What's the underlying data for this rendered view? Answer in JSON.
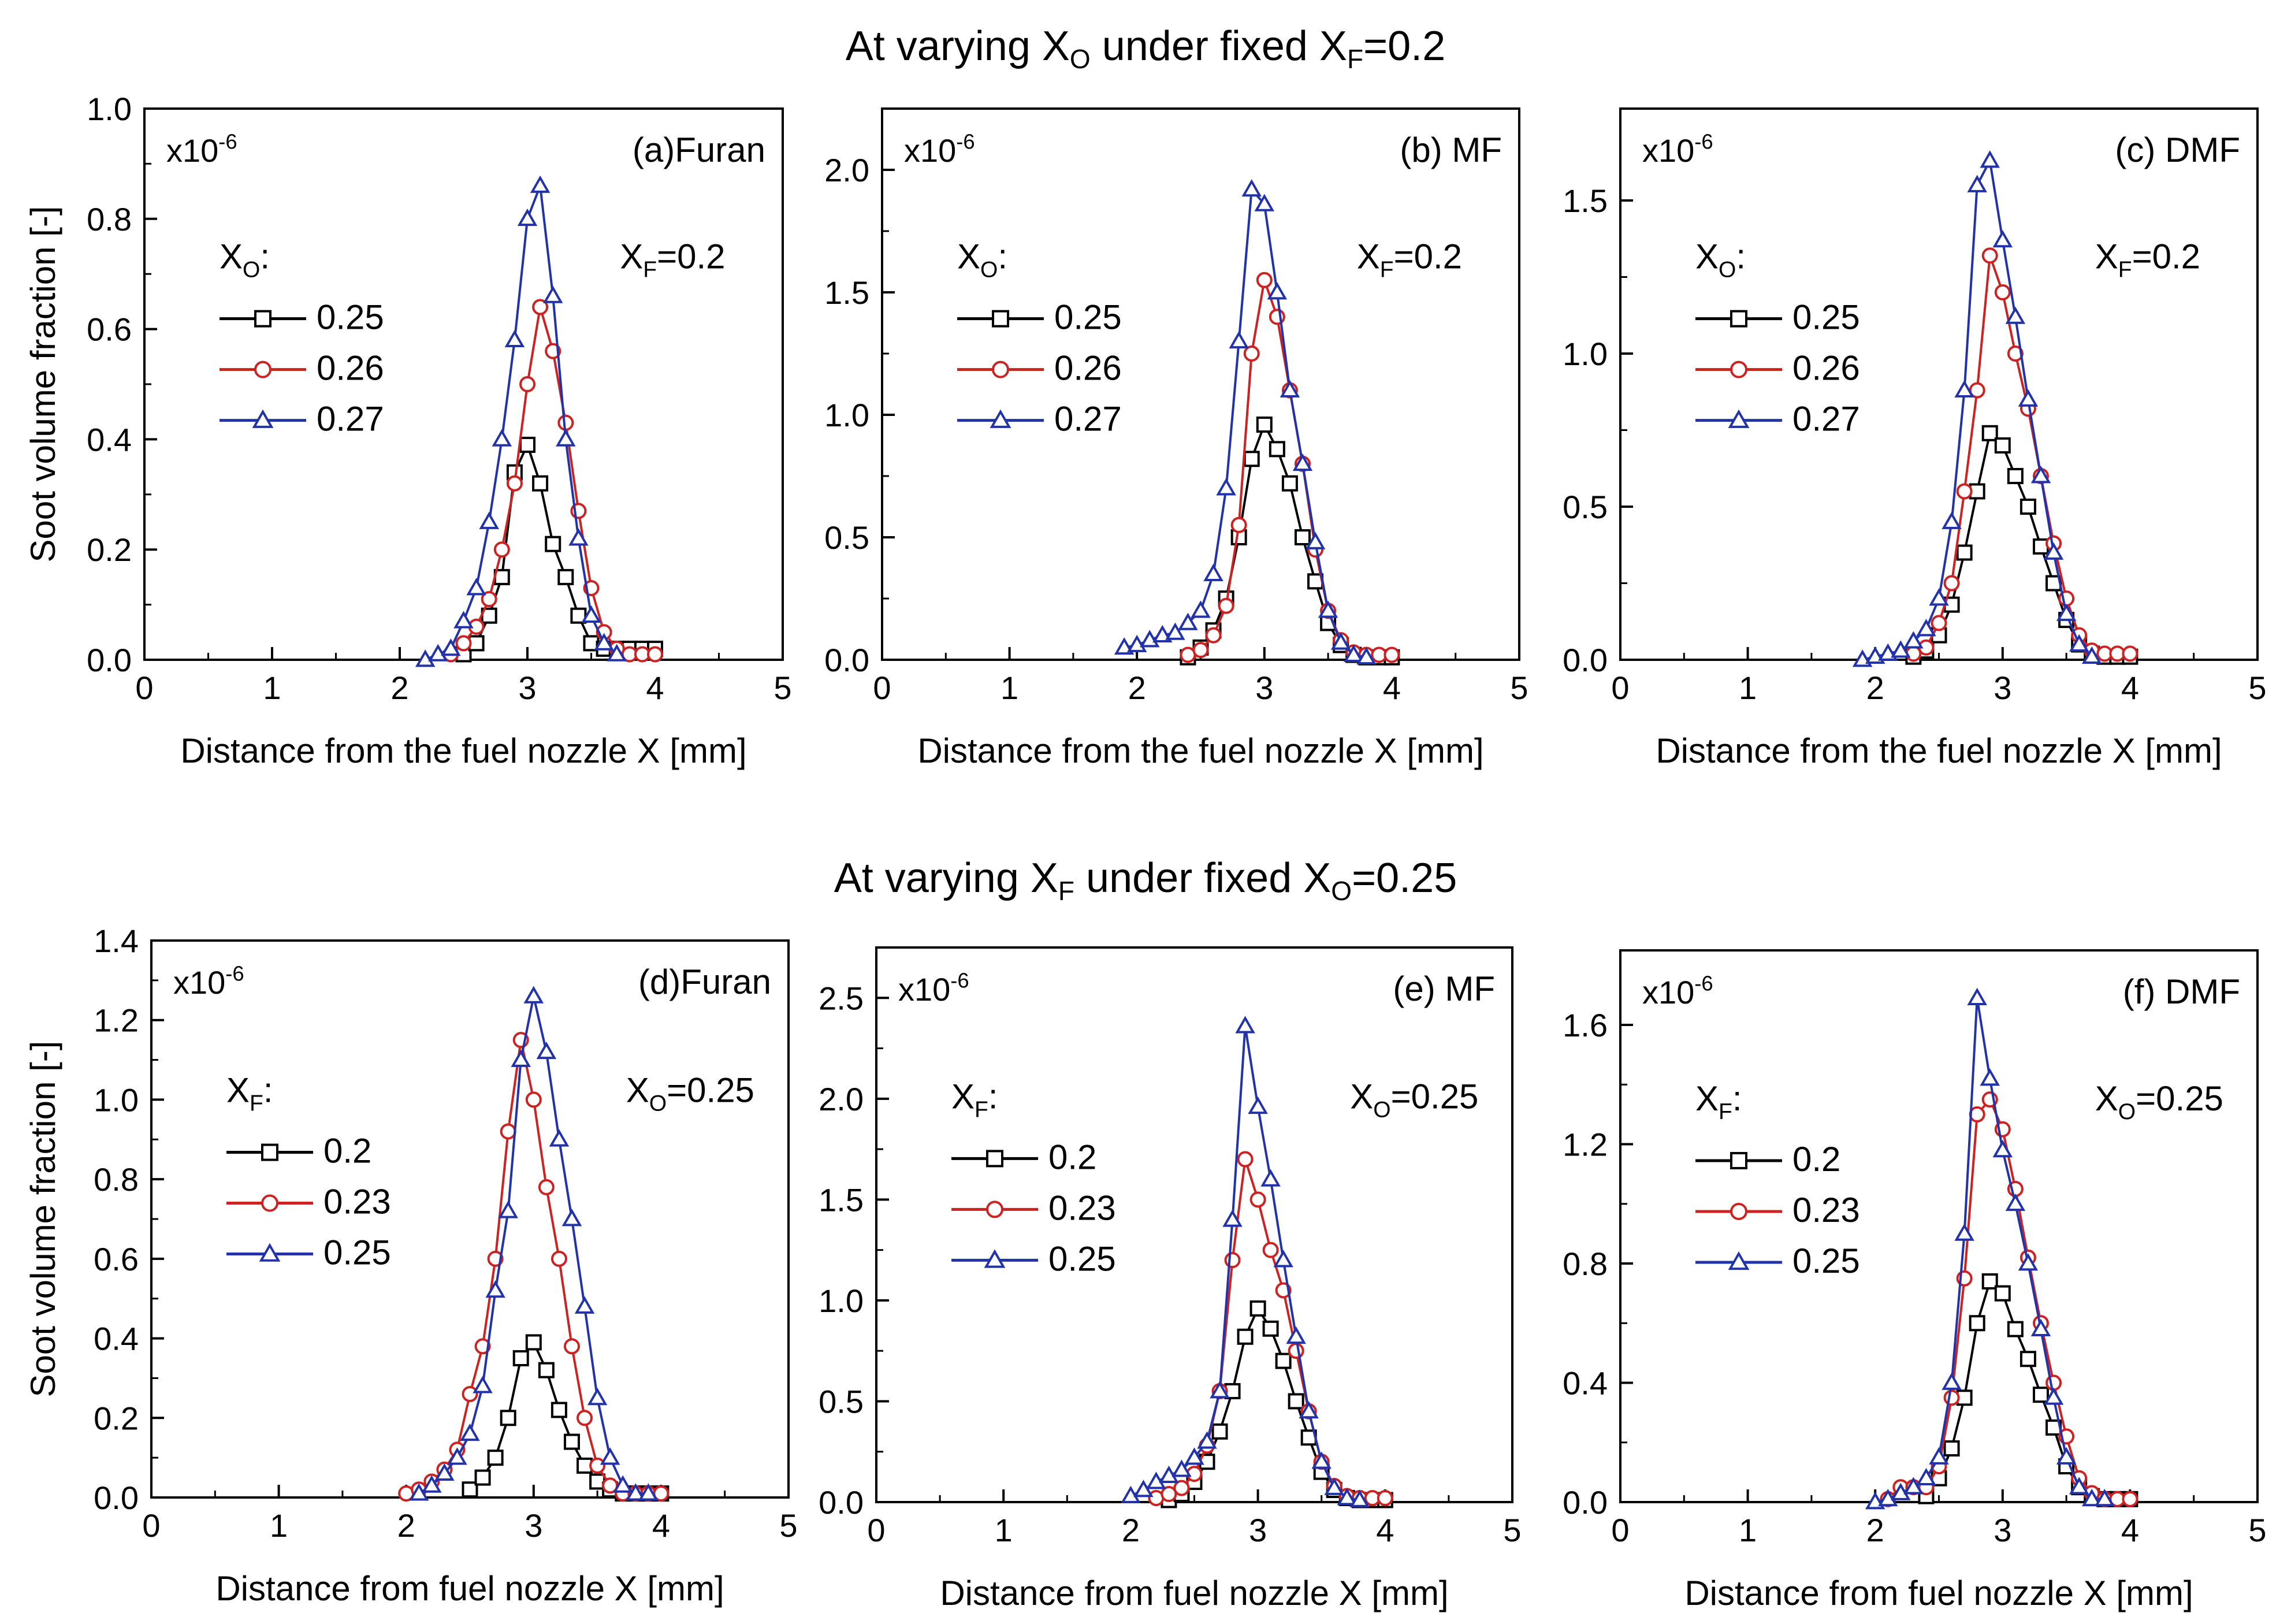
{
  "row_titles": {
    "top": {
      "pre": "At varying X",
      "sub1": "O",
      "mid": " under fixed X",
      "sub2": "F",
      "post": "=0.2"
    },
    "bottom": {
      "pre": "At varying X",
      "sub1": "F",
      "mid": " under fixed X",
      "sub2": "O",
      "post": "=0.25"
    }
  },
  "chart_data": [
    {
      "type": "line",
      "panel": "(a)Furan",
      "xlabel": "Distance from the fuel nozzle X [mm]",
      "ylabel": "Soot volume fraction [-]",
      "multiplier": {
        "base": "x10",
        "exp": "-6"
      },
      "condition": {
        "var": "X",
        "sub": "F",
        "val": "=0.2"
      },
      "legend_title": {
        "var": "X",
        "sub": "O",
        "suffix": ":"
      },
      "xlim": [
        0,
        5
      ],
      "ylim": [
        0,
        1.0
      ],
      "xticks": [
        0,
        1,
        2,
        3,
        4,
        5
      ],
      "yticks": [
        0.0,
        0.2,
        0.4,
        0.6,
        0.8,
        1.0
      ],
      "ytick_labels": [
        "0.0",
        "0.2",
        "0.4",
        "0.6",
        "0.8",
        "1.0"
      ],
      "series": [
        {
          "name": "0.25",
          "color": "#000000",
          "marker": "square",
          "x": [
            2.5,
            2.6,
            2.7,
            2.8,
            2.9,
            3.0,
            3.1,
            3.2,
            3.3,
            3.4,
            3.5,
            3.6,
            3.7,
            3.8,
            3.9,
            4.0
          ],
          "y": [
            0.01,
            0.03,
            0.08,
            0.15,
            0.34,
            0.39,
            0.32,
            0.21,
            0.15,
            0.08,
            0.03,
            0.02,
            0.02,
            0.02,
            0.02,
            0.02
          ]
        },
        {
          "name": "0.26",
          "color": "#cc2222",
          "marker": "circle",
          "x": [
            2.4,
            2.5,
            2.6,
            2.7,
            2.8,
            2.9,
            3.0,
            3.1,
            3.2,
            3.3,
            3.4,
            3.5,
            3.6,
            3.7,
            3.8,
            3.9,
            4.0
          ],
          "y": [
            0.01,
            0.03,
            0.06,
            0.11,
            0.2,
            0.32,
            0.5,
            0.64,
            0.56,
            0.43,
            0.27,
            0.13,
            0.05,
            0.02,
            0.01,
            0.01,
            0.01
          ]
        },
        {
          "name": "0.27",
          "color": "#2233aa",
          "marker": "triangle",
          "x": [
            2.2,
            2.3,
            2.4,
            2.5,
            2.6,
            2.7,
            2.8,
            2.9,
            3.0,
            3.1,
            3.2,
            3.3,
            3.4,
            3.5,
            3.6,
            3.7
          ],
          "y": [
            0.0,
            0.01,
            0.02,
            0.07,
            0.13,
            0.25,
            0.4,
            0.58,
            0.8,
            0.86,
            0.66,
            0.4,
            0.22,
            0.08,
            0.03,
            0.01
          ]
        }
      ]
    },
    {
      "type": "line",
      "panel": "(b) MF",
      "xlabel": "Distance from the fuel nozzle X [mm]",
      "ylabel": "",
      "multiplier": {
        "base": "x10",
        "exp": "-6"
      },
      "condition": {
        "var": "X",
        "sub": "F",
        "val": "=0.2"
      },
      "legend_title": {
        "var": "X",
        "sub": "O",
        "suffix": ":"
      },
      "xlim": [
        0,
        5
      ],
      "ylim": [
        0,
        2.25
      ],
      "xticks": [
        0,
        1,
        2,
        3,
        4,
        5
      ],
      "yticks": [
        0.0,
        0.5,
        1.0,
        1.5,
        2.0
      ],
      "ytick_labels": [
        "0.0",
        "0.5",
        "1.0",
        "1.5",
        "2.0"
      ],
      "series": [
        {
          "name": "0.25",
          "color": "#000000",
          "marker": "square",
          "x": [
            2.4,
            2.5,
            2.6,
            2.7,
            2.8,
            2.9,
            3.0,
            3.1,
            3.2,
            3.3,
            3.4,
            3.5,
            3.6,
            3.7,
            3.8,
            3.9,
            4.0
          ],
          "y": [
            0.01,
            0.05,
            0.12,
            0.25,
            0.5,
            0.82,
            0.96,
            0.86,
            0.72,
            0.5,
            0.32,
            0.15,
            0.06,
            0.02,
            0.01,
            0.01,
            0.01
          ]
        },
        {
          "name": "0.26",
          "color": "#cc2222",
          "marker": "circle",
          "x": [
            2.4,
            2.5,
            2.6,
            2.7,
            2.8,
            2.9,
            3.0,
            3.1,
            3.2,
            3.3,
            3.4,
            3.5,
            3.6,
            3.7,
            3.8,
            3.9,
            4.0
          ],
          "y": [
            0.02,
            0.04,
            0.1,
            0.22,
            0.55,
            1.25,
            1.55,
            1.4,
            1.1,
            0.8,
            0.45,
            0.2,
            0.08,
            0.03,
            0.02,
            0.02,
            0.02
          ]
        },
        {
          "name": "0.27",
          "color": "#2233aa",
          "marker": "triangle",
          "x": [
            1.9,
            2.0,
            2.1,
            2.2,
            2.3,
            2.4,
            2.5,
            2.6,
            2.7,
            2.8,
            2.9,
            3.0,
            3.1,
            3.2,
            3.3,
            3.4,
            3.5,
            3.6,
            3.7,
            3.8
          ],
          "y": [
            0.05,
            0.06,
            0.08,
            0.1,
            0.11,
            0.15,
            0.2,
            0.35,
            0.7,
            1.3,
            1.92,
            1.86,
            1.5,
            1.1,
            0.8,
            0.48,
            0.2,
            0.07,
            0.02,
            0.01
          ]
        }
      ]
    },
    {
      "type": "line",
      "panel": "(c) DMF",
      "xlabel": "Distance from the fuel nozzle X [mm]",
      "ylabel": "",
      "multiplier": {
        "base": "x10",
        "exp": "-6"
      },
      "condition": {
        "var": "X",
        "sub": "F",
        "val": "=0.2"
      },
      "legend_title": {
        "var": "X",
        "sub": "O",
        "suffix": ":"
      },
      "xlim": [
        0,
        5
      ],
      "ylim": [
        0,
        1.8
      ],
      "xticks": [
        0,
        1,
        2,
        3,
        4,
        5
      ],
      "yticks": [
        0.0,
        0.5,
        1.0,
        1.5
      ],
      "ytick_labels": [
        "0.0",
        "0.5",
        "1.0",
        "1.5"
      ],
      "series": [
        {
          "name": "0.25",
          "color": "#000000",
          "marker": "square",
          "x": [
            2.3,
            2.4,
            2.5,
            2.6,
            2.7,
            2.8,
            2.9,
            3.0,
            3.1,
            3.2,
            3.3,
            3.4,
            3.5,
            3.6,
            3.7,
            3.8,
            3.9,
            4.0
          ],
          "y": [
            0.01,
            0.03,
            0.08,
            0.18,
            0.35,
            0.55,
            0.74,
            0.7,
            0.6,
            0.5,
            0.37,
            0.25,
            0.13,
            0.05,
            0.02,
            0.01,
            0.01,
            0.01
          ]
        },
        {
          "name": "0.26",
          "color": "#cc2222",
          "marker": "circle",
          "x": [
            2.3,
            2.4,
            2.5,
            2.6,
            2.7,
            2.8,
            2.9,
            3.0,
            3.1,
            3.2,
            3.3,
            3.4,
            3.5,
            3.6,
            3.7,
            3.8,
            3.9,
            4.0
          ],
          "y": [
            0.02,
            0.04,
            0.12,
            0.25,
            0.55,
            0.88,
            1.32,
            1.2,
            1.0,
            0.82,
            0.6,
            0.38,
            0.2,
            0.08,
            0.03,
            0.02,
            0.02,
            0.02
          ]
        },
        {
          "name": "0.27",
          "color": "#2233aa",
          "marker": "triangle",
          "x": [
            1.9,
            2.0,
            2.1,
            2.2,
            2.3,
            2.4,
            2.5,
            2.6,
            2.7,
            2.8,
            2.9,
            3.0,
            3.1,
            3.2,
            3.3,
            3.4,
            3.5,
            3.6,
            3.7
          ],
          "y": [
            0.0,
            0.01,
            0.02,
            0.03,
            0.06,
            0.1,
            0.2,
            0.45,
            0.88,
            1.55,
            1.63,
            1.37,
            1.12,
            0.85,
            0.6,
            0.35,
            0.15,
            0.05,
            0.01
          ]
        }
      ]
    },
    {
      "type": "line",
      "panel": "(d)Furan",
      "xlabel": "Distance from fuel nozzle X [mm]",
      "ylabel": "Soot volume fraction [-]",
      "multiplier": {
        "base": "x10",
        "exp": "-6"
      },
      "condition": {
        "var": "X",
        "sub": "O",
        "val": "=0.25"
      },
      "legend_title": {
        "var": "X",
        "sub": "F",
        "suffix": ":"
      },
      "xlim": [
        0,
        5
      ],
      "ylim": [
        0,
        1.4
      ],
      "xticks": [
        0,
        1,
        2,
        3,
        4,
        5
      ],
      "yticks": [
        0.0,
        0.2,
        0.4,
        0.6,
        0.8,
        1.0,
        1.2,
        1.4
      ],
      "ytick_labels": [
        "0.0",
        "0.2",
        "0.4",
        "0.6",
        "0.8",
        "1.0",
        "1.2",
        "1.4"
      ],
      "series": [
        {
          "name": "0.2",
          "color": "#000000",
          "marker": "square",
          "x": [
            2.5,
            2.6,
            2.7,
            2.8,
            2.9,
            3.0,
            3.1,
            3.2,
            3.3,
            3.4,
            3.5,
            3.6,
            3.7,
            3.8,
            3.9,
            4.0
          ],
          "y": [
            0.02,
            0.05,
            0.1,
            0.2,
            0.35,
            0.39,
            0.32,
            0.22,
            0.14,
            0.08,
            0.04,
            0.02,
            0.01,
            0.01,
            0.01,
            0.01
          ]
        },
        {
          "name": "0.23",
          "color": "#cc2222",
          "marker": "circle",
          "x": [
            2.0,
            2.1,
            2.2,
            2.3,
            2.4,
            2.5,
            2.6,
            2.7,
            2.8,
            2.9,
            3.0,
            3.1,
            3.2,
            3.3,
            3.4,
            3.5,
            3.6,
            3.7,
            3.8,
            3.9,
            4.0
          ],
          "y": [
            0.01,
            0.02,
            0.04,
            0.07,
            0.12,
            0.26,
            0.38,
            0.6,
            0.92,
            1.15,
            1.0,
            0.78,
            0.6,
            0.38,
            0.2,
            0.08,
            0.03,
            0.01,
            0.01,
            0.01,
            0.01
          ]
        },
        {
          "name": "0.25",
          "color": "#2233aa",
          "marker": "triangle",
          "x": [
            2.1,
            2.2,
            2.3,
            2.4,
            2.5,
            2.6,
            2.7,
            2.8,
            2.9,
            3.0,
            3.1,
            3.2,
            3.3,
            3.4,
            3.5,
            3.6,
            3.7,
            3.8,
            3.9
          ],
          "y": [
            0.01,
            0.03,
            0.06,
            0.1,
            0.16,
            0.28,
            0.52,
            0.72,
            1.1,
            1.26,
            1.12,
            0.9,
            0.7,
            0.48,
            0.25,
            0.1,
            0.03,
            0.01,
            0.01
          ]
        }
      ]
    },
    {
      "type": "line",
      "panel": "(e) MF",
      "xlabel": "Distance from fuel nozzle X [mm]",
      "ylabel": "",
      "multiplier": {
        "base": "x10",
        "exp": "-6"
      },
      "condition": {
        "var": "X",
        "sub": "O",
        "val": "=0.25"
      },
      "legend_title": {
        "var": "X",
        "sub": "F",
        "suffix": ":"
      },
      "xlim": [
        0,
        5
      ],
      "ylim": [
        0,
        2.75
      ],
      "xticks": [
        0,
        1,
        2,
        3,
        4,
        5
      ],
      "yticks": [
        0.0,
        0.5,
        1.0,
        1.5,
        2.0,
        2.5
      ],
      "ytick_labels": [
        "0.0",
        "0.5",
        "1.0",
        "1.5",
        "2.0",
        "2.5"
      ],
      "series": [
        {
          "name": "0.2",
          "color": "#000000",
          "marker": "square",
          "x": [
            2.3,
            2.4,
            2.5,
            2.6,
            2.7,
            2.8,
            2.9,
            3.0,
            3.1,
            3.2,
            3.3,
            3.4,
            3.5,
            3.6,
            3.7,
            3.8,
            3.9,
            4.0
          ],
          "y": [
            0.01,
            0.04,
            0.1,
            0.2,
            0.35,
            0.55,
            0.82,
            0.96,
            0.86,
            0.7,
            0.5,
            0.32,
            0.15,
            0.06,
            0.02,
            0.01,
            0.01,
            0.01
          ]
        },
        {
          "name": "0.23",
          "color": "#cc2222",
          "marker": "circle",
          "x": [
            2.2,
            2.3,
            2.4,
            2.5,
            2.6,
            2.7,
            2.8,
            2.9,
            3.0,
            3.1,
            3.2,
            3.3,
            3.4,
            3.5,
            3.6,
            3.7,
            3.8,
            3.9,
            4.0
          ],
          "y": [
            0.02,
            0.04,
            0.07,
            0.14,
            0.28,
            0.55,
            1.2,
            1.7,
            1.5,
            1.25,
            1.05,
            0.75,
            0.45,
            0.2,
            0.08,
            0.03,
            0.02,
            0.02,
            0.02
          ]
        },
        {
          "name": "0.25",
          "color": "#2233aa",
          "marker": "triangle",
          "x": [
            2.0,
            2.1,
            2.2,
            2.3,
            2.4,
            2.5,
            2.6,
            2.7,
            2.8,
            2.9,
            3.0,
            3.1,
            3.2,
            3.3,
            3.4,
            3.5,
            3.6,
            3.7,
            3.8
          ],
          "y": [
            0.03,
            0.06,
            0.1,
            0.13,
            0.16,
            0.22,
            0.3,
            0.55,
            1.4,
            2.36,
            1.96,
            1.6,
            1.2,
            0.82,
            0.45,
            0.2,
            0.07,
            0.02,
            0.01
          ]
        }
      ]
    },
    {
      "type": "line",
      "panel": "(f) DMF",
      "xlabel": "Distance from fuel nozzle X [mm]",
      "ylabel": "",
      "multiplier": {
        "base": "x10",
        "exp": "-6"
      },
      "condition": {
        "var": "X",
        "sub": "O",
        "val": "=0.25"
      },
      "legend_title": {
        "var": "X",
        "sub": "F",
        "suffix": ":"
      },
      "xlim": [
        0,
        5
      ],
      "ylim": [
        0,
        1.85
      ],
      "xticks": [
        0,
        1,
        2,
        3,
        4,
        5
      ],
      "yticks": [
        0.0,
        0.4,
        0.8,
        1.2,
        1.6
      ],
      "ytick_labels": [
        "0.0",
        "0.4",
        "0.8",
        "1.2",
        "1.6"
      ],
      "series": [
        {
          "name": "0.2",
          "color": "#000000",
          "marker": "square",
          "x": [
            2.4,
            2.5,
            2.6,
            2.7,
            2.8,
            2.9,
            3.0,
            3.1,
            3.2,
            3.3,
            3.4,
            3.5,
            3.6,
            3.7,
            3.8,
            3.9,
            4.0
          ],
          "y": [
            0.02,
            0.08,
            0.18,
            0.35,
            0.6,
            0.74,
            0.7,
            0.58,
            0.48,
            0.36,
            0.25,
            0.12,
            0.05,
            0.02,
            0.01,
            0.01,
            0.01
          ]
        },
        {
          "name": "0.23",
          "color": "#cc2222",
          "marker": "circle",
          "x": [
            2.1,
            2.2,
            2.3,
            2.4,
            2.5,
            2.6,
            2.7,
            2.8,
            2.9,
            3.0,
            3.1,
            3.2,
            3.3,
            3.4,
            3.5,
            3.6,
            3.7,
            3.8,
            3.9,
            4.0
          ],
          "y": [
            0.01,
            0.05,
            0.05,
            0.05,
            0.12,
            0.35,
            0.75,
            1.3,
            1.35,
            1.25,
            1.05,
            0.82,
            0.6,
            0.4,
            0.22,
            0.08,
            0.03,
            0.01,
            0.01,
            0.01
          ]
        },
        {
          "name": "0.25",
          "color": "#2233aa",
          "marker": "triangle",
          "x": [
            2.0,
            2.1,
            2.2,
            2.3,
            2.4,
            2.5,
            2.6,
            2.7,
            2.8,
            2.9,
            3.0,
            3.1,
            3.2,
            3.3,
            3.4,
            3.5,
            3.6,
            3.7,
            3.8
          ],
          "y": [
            0.0,
            0.01,
            0.03,
            0.05,
            0.08,
            0.15,
            0.4,
            0.9,
            1.69,
            1.42,
            1.18,
            1.0,
            0.8,
            0.58,
            0.35,
            0.15,
            0.05,
            0.01,
            0.01
          ]
        }
      ]
    }
  ]
}
